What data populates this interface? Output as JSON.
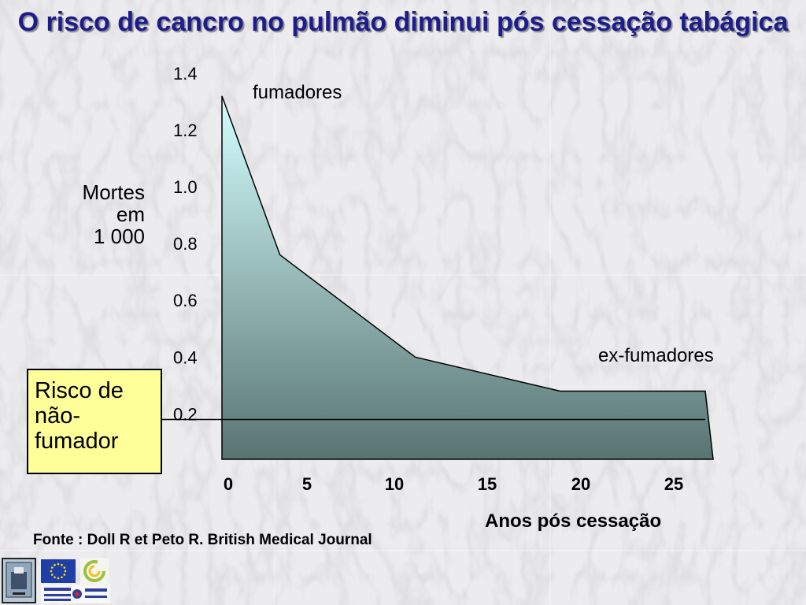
{
  "slide": {
    "title": "O risco de cancro no pulmão diminui pós cessação tabágica",
    "y_label_lines": [
      "Mortes",
      "em",
      "1 000"
    ],
    "x_label": "Anos pós cessação",
    "label_smokers": "fumadores",
    "label_ex_smokers": "ex-fumadores",
    "reference_box": "Risco de não-fumador",
    "source": "Fonte : Doll R et Peto R.  British Medical Journal"
  },
  "chart_data": {
    "type": "area",
    "xlabel": "Anos pós cessação",
    "ylabel": "Mortes em 1 000",
    "x_ticks": [
      "0",
      "5",
      "10",
      "15",
      "20",
      "25"
    ],
    "y_ticks": [
      "1.4",
      "1.2",
      "1.0",
      "0.8",
      "0.6",
      "0.4",
      "0.2"
    ],
    "xlim": [
      0,
      25
    ],
    "ylim": [
      0.04,
      1.4
    ],
    "series": [
      {
        "x": [
          0,
          3,
          10,
          17.5,
          25
        ],
        "y": [
          1.32,
          0.76,
          0.4,
          0.28,
          0.28
        ]
      }
    ],
    "reference_line": {
      "y": 0.18
    },
    "grid": false
  },
  "colors": {
    "title": "#1c1c8c",
    "area_top": "#d4ffff",
    "area_bottom": "#587472",
    "reference_box": "#ffff99"
  },
  "icons": [
    "institution-logo-icon",
    "eu-flag-icon",
    "spiral-logo-icon",
    "aphp-logo-icon"
  ]
}
